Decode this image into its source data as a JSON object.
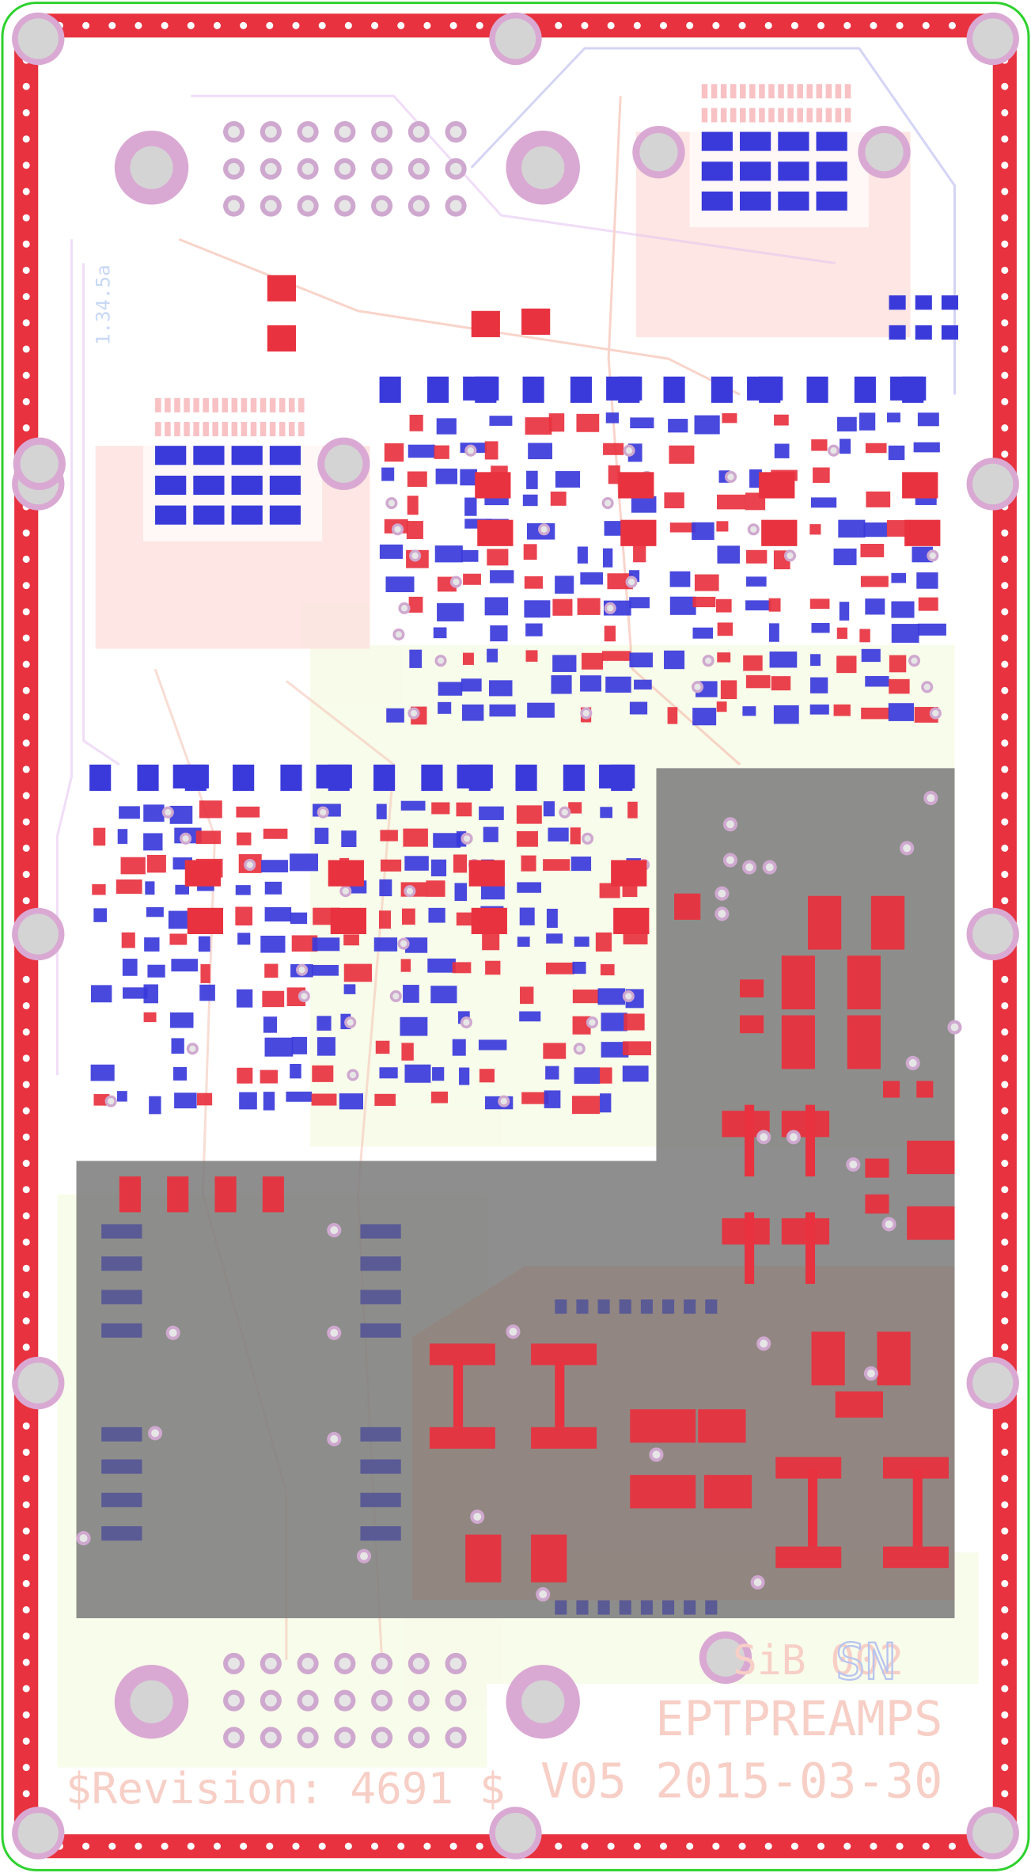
{
  "silkscreen": {
    "serial": "SiB 002",
    "serial_mark": "SN",
    "project": "EPTPREAMPS",
    "version": "V05 2015-03-30",
    "revision": "$Revision: 4691 $",
    "side_label": "1.34.5a"
  }
}
